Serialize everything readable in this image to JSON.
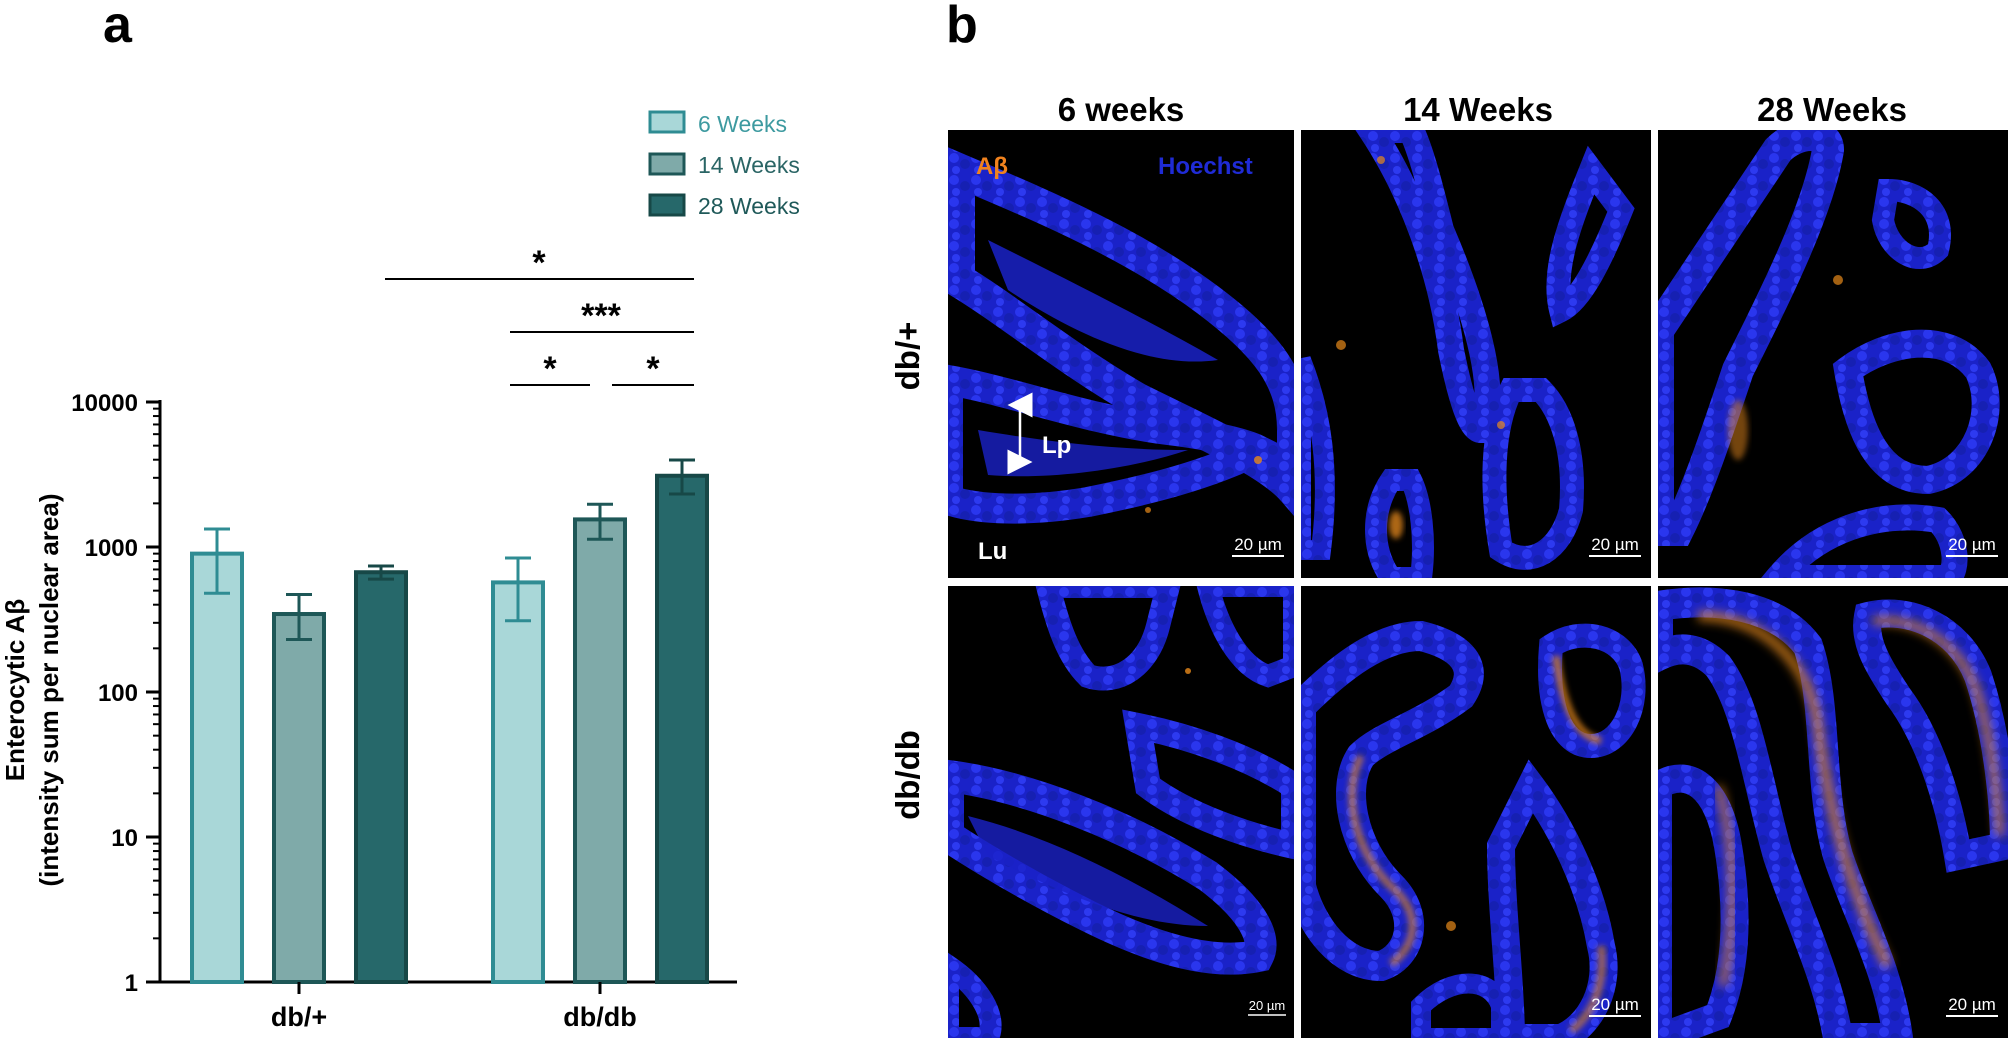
{
  "panel_a_letter": "a",
  "panel_b_letter": "b",
  "chart_data": {
    "type": "bar",
    "y_scale": "log",
    "ylim": [
      1,
      10000
    ],
    "y_ticks": [
      "1",
      "10",
      "100",
      "1000",
      "10000"
    ],
    "y_tick_values": [
      1,
      10,
      100,
      1000,
      10000
    ],
    "ylabel_line1": "Enterocytic Aβ",
    "ylabel_line2": "(intensity sum per nuclear area)",
    "xlabel": "",
    "categories": [
      "db/+",
      "db/db"
    ],
    "series": [
      {
        "name": "6 Weeks",
        "values": [
          900,
          570
        ],
        "err_low": [
          480,
          310
        ],
        "err_high": [
          1330,
          840
        ],
        "fill": "#a9d7d8",
        "stroke": "#2f8c93",
        "legend_text_color": "#3d9aa0"
      },
      {
        "name": "14 Weeks",
        "values": [
          345,
          1550
        ],
        "err_low": [
          230,
          1130
        ],
        "err_high": [
          470,
          1970
        ],
        "fill": "#7faaa9",
        "stroke": "#1e5757",
        "legend_text_color": "#2a6565"
      },
      {
        "name": "28 Weeks",
        "values": [
          670,
          3100
        ],
        "err_low": [
          600,
          2320
        ],
        "err_high": [
          740,
          3980
        ],
        "fill": "#26686a",
        "stroke": "#174847",
        "legend_text_color": "#1f5959"
      }
    ],
    "significance": [
      {
        "label": "*",
        "from": "db/+ 14 Weeks",
        "to": "db/db 28 Weeks"
      },
      {
        "label": "***",
        "from": "db/db 6 Weeks",
        "to": "db/db 28 Weeks"
      },
      {
        "label": "*",
        "from": "db/db 6 Weeks",
        "to": "db/db 14 Weeks"
      },
      {
        "label": "*",
        "from": "db/db 14 Weeks",
        "to": "db/db 28 Weeks"
      }
    ],
    "grid": false,
    "legend_position": "top-right"
  },
  "micrographs": {
    "columns": [
      "6 weeks",
      "14 Weeks",
      "28 Weeks"
    ],
    "rows": [
      "db/+",
      "db/db"
    ],
    "channel_labels": [
      {
        "text": "Aβ",
        "color": "#f0821e"
      },
      {
        "text": "Hoechst",
        "color": "#1f2bd6"
      }
    ],
    "annotations": [
      "Lp",
      "Lu"
    ],
    "scale_bar_label": "20 µm",
    "colors": {
      "background": "#000000",
      "nuclei": "#1a22c8",
      "abeta": "#e88a1a"
    }
  }
}
